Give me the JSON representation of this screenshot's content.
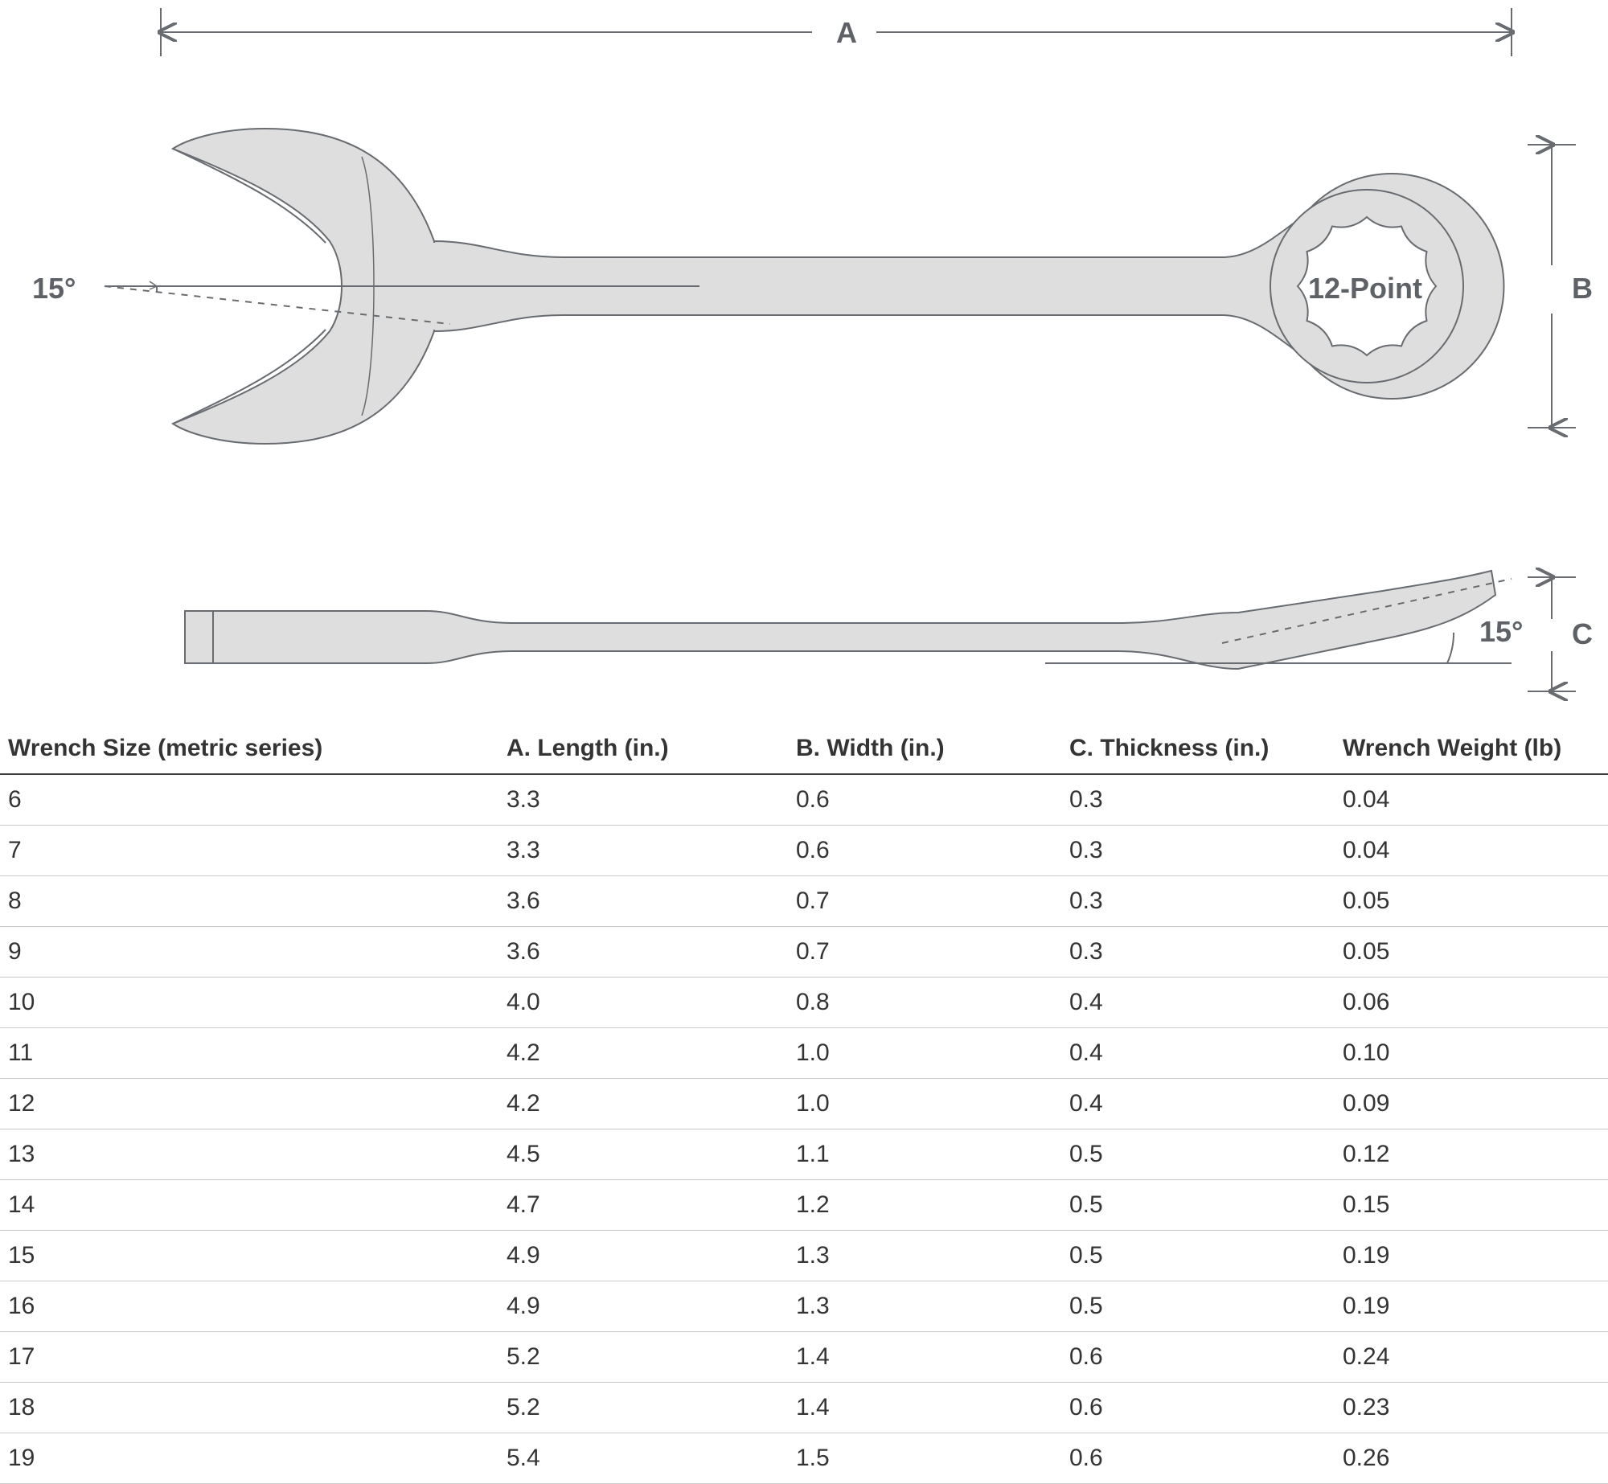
{
  "diagram": {
    "stroke_color": "#686c70",
    "fill_color": "#dedede",
    "line_width": 2,
    "label_color": "#5e6267",
    "label_fontsize": 36,
    "dim_A": "A",
    "dim_B": "B",
    "dim_C": "C",
    "angle_open": "15°",
    "angle_box": "15°",
    "point_label": "12-Point",
    "dash_pattern": "8 8"
  },
  "table": {
    "columns": [
      "Wrench Size (metric series)",
      "A. Length (in.)",
      "B. Width (in.)",
      "C. Thickness (in.)",
      "Wrench Weight (lb)"
    ],
    "rows": [
      [
        "6",
        "3.3",
        "0.6",
        "0.3",
        "0.04"
      ],
      [
        "7",
        "3.3",
        "0.6",
        "0.3",
        "0.04"
      ],
      [
        "8",
        "3.6",
        "0.7",
        "0.3",
        "0.05"
      ],
      [
        "9",
        "3.6",
        "0.7",
        "0.3",
        "0.05"
      ],
      [
        "10",
        "4.0",
        "0.8",
        "0.4",
        "0.06"
      ],
      [
        "11",
        "4.2",
        "1.0",
        "0.4",
        "0.10"
      ],
      [
        "12",
        "4.2",
        "1.0",
        "0.4",
        "0.09"
      ],
      [
        "13",
        "4.5",
        "1.1",
        "0.5",
        "0.12"
      ],
      [
        "14",
        "4.7",
        "1.2",
        "0.5",
        "0.15"
      ],
      [
        "15",
        "4.9",
        "1.3",
        "0.5",
        "0.19"
      ],
      [
        "16",
        "4.9",
        "1.3",
        "0.5",
        "0.19"
      ],
      [
        "17",
        "5.2",
        "1.4",
        "0.6",
        "0.24"
      ],
      [
        "18",
        "5.2",
        "1.4",
        "0.6",
        "0.23"
      ],
      [
        "19",
        "5.4",
        "1.5",
        "0.6",
        "0.26"
      ]
    ]
  }
}
